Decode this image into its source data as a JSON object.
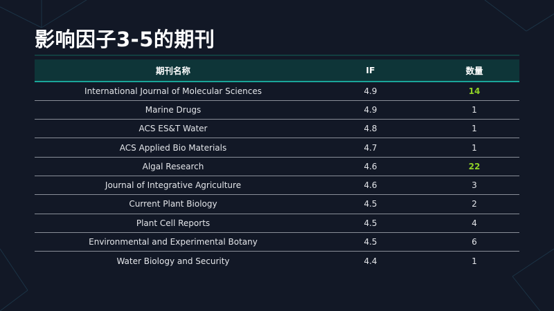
{
  "title": "影响因子3-5的期刊",
  "table": {
    "headers": [
      "期刊名称",
      "IF",
      "数量"
    ],
    "highlight_color": "#8fd126",
    "rows": [
      {
        "name": "International Journal of Molecular Sciences",
        "if": "4.9",
        "count": "14",
        "highlight": true
      },
      {
        "name": "Marine Drugs",
        "if": "4.9",
        "count": "1",
        "highlight": false
      },
      {
        "name": "ACS ES&T Water",
        "if": "4.8",
        "count": "1",
        "highlight": false
      },
      {
        "name": "ACS Applied Bio Materials",
        "if": "4.7",
        "count": "1",
        "highlight": false
      },
      {
        "name": "Algal Research",
        "if": "4.6",
        "count": "22",
        "highlight": true
      },
      {
        "name": "Journal of Integrative Agriculture",
        "if": "4.6",
        "count": "3",
        "highlight": false
      },
      {
        "name": "Current Plant Biology",
        "if": "4.5",
        "count": "2",
        "highlight": false
      },
      {
        "name": "Plant Cell Reports",
        "if": "4.5",
        "count": "4",
        "highlight": false
      },
      {
        "name": "Environmental and Experimental Botany",
        "if": "4.5",
        "count": "6",
        "highlight": false
      },
      {
        "name": "Water Biology and Security",
        "if": "4.4",
        "count": "1",
        "highlight": false
      }
    ]
  }
}
